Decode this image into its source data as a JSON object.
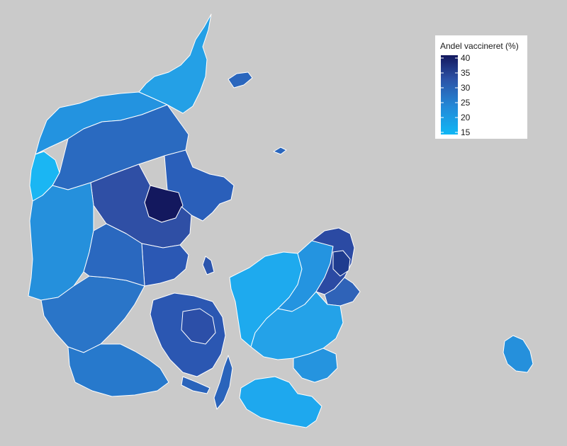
{
  "legend": {
    "title": "Andel vaccineret (%)",
    "ticks": [
      "40",
      "35",
      "30",
      "25",
      "20",
      "15"
    ],
    "min": 15,
    "max": 40,
    "color_low": "#0fb7f5",
    "color_high": "#13185e"
  },
  "colors": {
    "background": "#cacaca",
    "border": "#ffffff"
  }
}
